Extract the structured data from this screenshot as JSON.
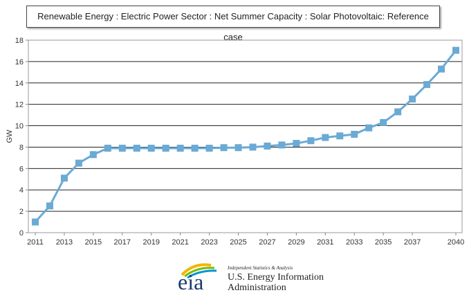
{
  "chart_data": {
    "type": "line",
    "title": "Renewable Energy : Electric Power Sector : Net Summer Capacity : Solar Photovoltaic: Reference case",
    "ylabel": "GW",
    "xlabel": "",
    "ylim": [
      0,
      18
    ],
    "yticks": [
      0,
      2,
      4,
      6,
      8,
      10,
      12,
      14,
      16,
      18
    ],
    "xticks": [
      2011,
      2013,
      2015,
      2017,
      2019,
      2021,
      2023,
      2025,
      2027,
      2029,
      2031,
      2033,
      2035,
      2037,
      2040
    ],
    "grid": true,
    "series_color": "#6aaad4",
    "x": [
      2011,
      2012,
      2013,
      2014,
      2015,
      2016,
      2017,
      2018,
      2019,
      2020,
      2021,
      2022,
      2023,
      2024,
      2025,
      2026,
      2027,
      2028,
      2029,
      2030,
      2031,
      2032,
      2033,
      2034,
      2035,
      2036,
      2037,
      2038,
      2039,
      2040
    ],
    "values": [
      1.0,
      2.5,
      5.1,
      6.5,
      7.3,
      7.9,
      7.9,
      7.9,
      7.9,
      7.9,
      7.9,
      7.9,
      7.9,
      7.95,
      7.95,
      8.0,
      8.1,
      8.2,
      8.35,
      8.6,
      8.9,
      9.05,
      9.2,
      9.8,
      10.3,
      11.3,
      12.5,
      13.85,
      15.3,
      17.05
    ]
  },
  "logo": {
    "mark": "eia",
    "tagline": "Independent Statistics & Analysis",
    "name_line1": "U.S. Energy Information",
    "name_line2": "Administration"
  }
}
